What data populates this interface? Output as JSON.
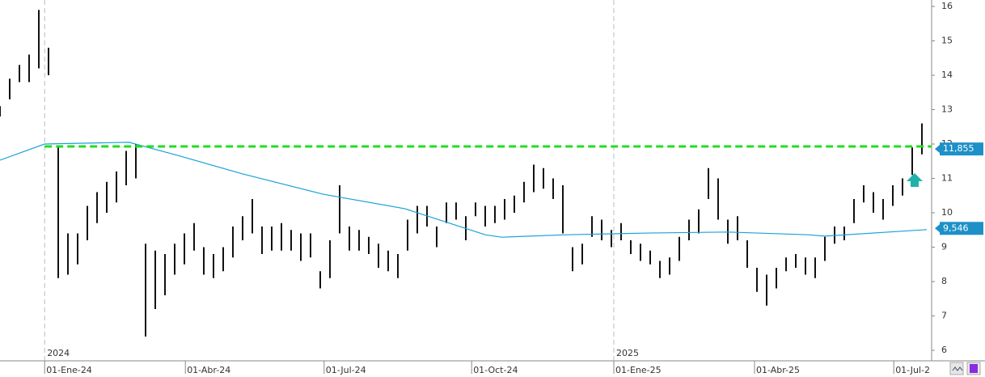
{
  "chart_data": {
    "type": "ohlc",
    "color": "#111111",
    "high": [
      13.1,
      13.9,
      14.3,
      14.6,
      15.9,
      14.8,
      11.9,
      9.4,
      9.4,
      10.2,
      10.6,
      10.9,
      11.2,
      11.8,
      12.0,
      9.1,
      8.9,
      8.8,
      9.1,
      9.4,
      9.7,
      9.0,
      8.8,
      9.0,
      9.6,
      9.9,
      10.4,
      9.6,
      9.6,
      9.7,
      9.5,
      9.4,
      9.4,
      8.3,
      9.2,
      10.8,
      9.6,
      9.5,
      9.3,
      9.1,
      8.9,
      8.8,
      9.8,
      10.2,
      10.2,
      9.6,
      10.3,
      10.3,
      9.9,
      10.3,
      10.2,
      10.2,
      10.4,
      10.5,
      10.9,
      11.4,
      11.3,
      11.0,
      10.8,
      9.0,
      9.1,
      9.9,
      9.8,
      9.5,
      9.7,
      9.2,
      9.1,
      8.9,
      8.6,
      8.7,
      9.3,
      9.8,
      10.1,
      11.3,
      11.0,
      9.8,
      9.9,
      9.2,
      8.4,
      8.2,
      8.4,
      8.7,
      8.8,
      8.7,
      8.7,
      9.3,
      9.6,
      9.6,
      10.4,
      10.8,
      10.6,
      10.4,
      10.8,
      11.0,
      11.9,
      12.6
    ],
    "low": [
      12.8,
      13.3,
      13.8,
      13.8,
      14.2,
      14.0,
      8.1,
      8.2,
      8.5,
      9.2,
      9.7,
      10.0,
      10.3,
      10.8,
      11.0,
      6.4,
      7.2,
      7.6,
      8.2,
      8.5,
      8.9,
      8.2,
      8.1,
      8.3,
      8.7,
      9.2,
      9.4,
      8.8,
      8.9,
      8.9,
      8.9,
      8.6,
      8.7,
      7.8,
      8.1,
      9.4,
      8.9,
      8.9,
      8.8,
      8.4,
      8.3,
      8.1,
      8.9,
      9.4,
      9.6,
      9.0,
      9.7,
      9.8,
      9.2,
      9.9,
      9.6,
      9.7,
      9.8,
      10.0,
      10.3,
      10.6,
      10.7,
      10.4,
      9.4,
      8.3,
      8.5,
      9.3,
      9.2,
      9.0,
      9.2,
      8.8,
      8.6,
      8.5,
      8.1,
      8.2,
      8.6,
      9.2,
      9.4,
      10.4,
      9.8,
      9.1,
      9.2,
      8.4,
      7.7,
      7.3,
      7.8,
      8.3,
      8.4,
      8.2,
      8.1,
      8.6,
      9.1,
      9.2,
      9.7,
      10.3,
      10.0,
      9.8,
      10.2,
      10.5,
      11.1,
      11.7
    ],
    "moving_average": {
      "color": "#1ba1d8",
      "x": [
        0,
        4.6,
        13.3,
        18.3,
        25,
        33.3,
        41.7,
        50,
        51.7,
        58.3,
        66.7,
        75,
        83.3,
        85,
        95.5
      ],
      "values": [
        11.53,
        12.0,
        12.05,
        11.67,
        11.13,
        10.54,
        10.12,
        9.36,
        9.29,
        9.36,
        9.41,
        9.44,
        9.36,
        9.32,
        9.51
      ]
    },
    "level_line": {
      "value": 11.93,
      "x": [
        4.6,
        96
      ],
      "color": "#22dd22"
    },
    "price_labels": [
      {
        "value": 11.855,
        "label": "11,855"
      },
      {
        "value": 9.546,
        "label": "9,546"
      }
    ],
    "xlim": [
      0,
      96
    ],
    "ylim": [
      6,
      16
    ],
    "yticks": [
      6,
      7,
      8,
      9,
      10,
      11,
      12,
      13,
      14,
      15,
      16
    ],
    "xticks": [
      {
        "value": 4.6,
        "label": "01-Ene-24"
      },
      {
        "value": 19.1,
        "label": "01-Abr-24"
      },
      {
        "value": 33.4,
        "label": "01-Jul-24"
      },
      {
        "value": 48.6,
        "label": "01-Oct-24"
      },
      {
        "value": 63.25,
        "label": "01-Ene-25"
      },
      {
        "value": 77.75,
        "label": "01-Abr-25"
      },
      {
        "value": 92.1,
        "label": "01-Jul-2"
      }
    ],
    "year_labels": [
      {
        "value": 4.6,
        "label": "2024"
      },
      {
        "value": 63.25,
        "label": "2025"
      }
    ]
  }
}
